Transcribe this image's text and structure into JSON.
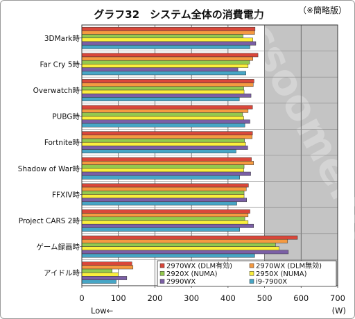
{
  "chart_data": {
    "type": "bar",
    "orientation": "horizontal",
    "title": "グラフ32　システム全体の消費電力",
    "note": "（※簡略版）",
    "xlabel_unit": "(W)",
    "x_direction_label": "Low←",
    "xlim": [
      0,
      700
    ],
    "xticks": [
      "0",
      "100",
      "200",
      "300",
      "400",
      "500",
      "600",
      "700"
    ],
    "grid": true,
    "legend_position": "bottom-right",
    "categories": [
      "3DMark時",
      "Far Cry 5時",
      "Overwatch時",
      "PUBG時",
      "Fortnite時",
      "Shadow of War時",
      "FFXIV時",
      "Project CARS 2時",
      "ゲーム録画時",
      "アイドル時"
    ],
    "series": [
      {
        "name": "2970WX (DLM有効)",
        "color": "#d9473a",
        "values": [
          474,
          482,
          471,
          467,
          467,
          464,
          456,
          460,
          590,
          137
        ]
      },
      {
        "name": "2970WX (DLM無効)",
        "color": "#f59a41",
        "values": [
          473,
          468,
          469,
          455,
          466,
          470,
          450,
          455,
          563,
          140
        ]
      },
      {
        "name": "2920X (NUMA)",
        "color": "#93c94e",
        "values": [
          441,
          459,
          443,
          440,
          445,
          444,
          444,
          446,
          530,
          83
        ]
      },
      {
        "name": "2950X (NUMA)",
        "color": "#fbef3c",
        "values": [
          468,
          455,
          444,
          443,
          448,
          443,
          444,
          455,
          540,
          100
        ]
      },
      {
        "name": "2990WX",
        "color": "#7b5fa6",
        "values": [
          476,
          427,
          463,
          460,
          454,
          462,
          451,
          470,
          565,
          123
        ]
      },
      {
        "name": "i9-7900X",
        "color": "#47a6c6",
        "values": [
          460,
          449,
          431,
          446,
          422,
          432,
          424,
          432,
          473,
          94
        ]
      }
    ],
    "watermark": "icsoome.net"
  }
}
